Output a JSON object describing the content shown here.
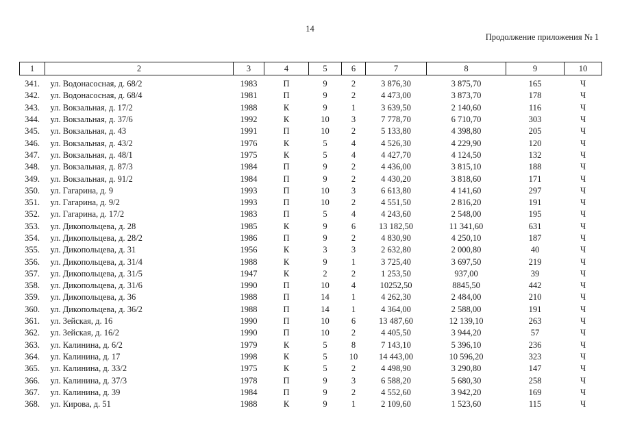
{
  "page": {
    "number": "14",
    "continuation_note": "Продолжение приложения № 1"
  },
  "table": {
    "column_headers": [
      "1",
      "2",
      "3",
      "4",
      "5",
      "6",
      "7",
      "8",
      "9",
      "10"
    ],
    "rows": [
      [
        "341.",
        "ул. Водонасосная, д. 68/2",
        "1983",
        "П",
        "9",
        "2",
        "3 876,30",
        "3 875,70",
        "165",
        "Ч"
      ],
      [
        "342.",
        "ул. Водонасосная, д. 68/4",
        "1981",
        "П",
        "9",
        "2",
        "4 473,00",
        "3 873,70",
        "178",
        "Ч"
      ],
      [
        "343.",
        "ул. Вокзальная, д. 17/2",
        "1988",
        "К",
        "9",
        "1",
        "3 639,50",
        "2 140,60",
        "116",
        "Ч"
      ],
      [
        "344.",
        "ул. Вокзальная, д. 37/6",
        "1992",
        "К",
        "10",
        "3",
        "7 778,70",
        "6 710,70",
        "303",
        "Ч"
      ],
      [
        "345.",
        "ул. Вокзальная, д. 43",
        "1991",
        "П",
        "10",
        "2",
        "5 133,80",
        "4 398,80",
        "205",
        "Ч"
      ],
      [
        "346.",
        "ул. Вокзальная, д. 43/2",
        "1976",
        "К",
        "5",
        "4",
        "4 526,30",
        "4 229,90",
        "120",
        "Ч"
      ],
      [
        "347.",
        "ул. Вокзальная, д. 48/1",
        "1975",
        "К",
        "5",
        "4",
        "4 427,70",
        "4 124,50",
        "132",
        "Ч"
      ],
      [
        "348.",
        "ул. Вокзальная, д. 87/3",
        "1984",
        "П",
        "9",
        "2",
        "4 436,00",
        "3 815,10",
        "188",
        "Ч"
      ],
      [
        "349.",
        "ул. Вокзальная, д. 91/2",
        "1984",
        "П",
        "9",
        "2",
        "4 430,20",
        "3 818,60",
        "171",
        "Ч"
      ],
      [
        "350.",
        "ул. Гагарина, д. 9",
        "1993",
        "П",
        "10",
        "3",
        "6 613,80",
        "4 141,60",
        "297",
        "Ч"
      ],
      [
        "351.",
        "ул. Гагарина, д. 9/2",
        "1993",
        "П",
        "10",
        "2",
        "4 551,50",
        "2 816,20",
        "191",
        "Ч"
      ],
      [
        "352.",
        "ул. Гагарина, д. 17/2",
        "1983",
        "П",
        "5",
        "4",
        "4 243,60",
        "2 548,00",
        "195",
        "Ч"
      ],
      [
        "353.",
        "ул. Дикопольцева, д. 28",
        "1985",
        "К",
        "9",
        "6",
        "13 182,50",
        "11 341,60",
        "631",
        "Ч"
      ],
      [
        "354.",
        "ул. Дикопольцева, д. 28/2",
        "1986",
        "П",
        "9",
        "2",
        "4 830,90",
        "4 250,10",
        "187",
        "Ч"
      ],
      [
        "355.",
        "ул. Дикопольцева, д. 31",
        "1956",
        "К",
        "3",
        "3",
        "2 632,80",
        "2 000,80",
        "40",
        "Ч"
      ],
      [
        "356.",
        "ул. Дикопольцева, д. 31/4",
        "1988",
        "К",
        "9",
        "1",
        "3 725,40",
        "3 697,50",
        "219",
        "Ч"
      ],
      [
        "357.",
        "ул. Дикопольцева, д. 31/5",
        "1947",
        "К",
        "2",
        "2",
        "1 253,50",
        "937,00",
        "39",
        "Ч"
      ],
      [
        "358.",
        "ул. Дикопольцева, д. 31/6",
        "1990",
        "П",
        "10",
        "4",
        "10252,50",
        "8845,50",
        "442",
        "Ч"
      ],
      [
        "359.",
        "ул. Дикопольцева, д. 36",
        "1988",
        "П",
        "14",
        "1",
        "4 262,30",
        "2 484,00",
        "210",
        "Ч"
      ],
      [
        "360.",
        "ул. Дикопольцева, д. 36/2",
        "1988",
        "П",
        "14",
        "1",
        "4 364,00",
        "2 588,00",
        "191",
        "Ч"
      ],
      [
        "361.",
        "ул. Зейская, д. 16",
        "1990",
        "П",
        "10",
        "6",
        "13 487,60",
        "12 139,10",
        "263",
        "Ч"
      ],
      [
        "362.",
        "ул. Зейская, д. 16/2",
        "1990",
        "П",
        "10",
        "2",
        "4 405,50",
        "3 944,20",
        "57",
        "Ч"
      ],
      [
        "363.",
        "ул. Калинина, д. 6/2",
        "1979",
        "К",
        "5",
        "8",
        "7 143,10",
        "5 396,10",
        "236",
        "Ч"
      ],
      [
        "364.",
        "ул. Калинина, д. 17",
        "1998",
        "К",
        "5",
        "10",
        "14 443,00",
        "10 596,20",
        "323",
        "Ч"
      ],
      [
        "365.",
        "ул. Калинина, д. 33/2",
        "1975",
        "К",
        "5",
        "2",
        "4 498,90",
        "3 290,80",
        "147",
        "Ч"
      ],
      [
        "366.",
        "ул. Калинина, д. 37/3",
        "1978",
        "П",
        "9",
        "3",
        "6 588,20",
        "5 680,30",
        "258",
        "Ч"
      ],
      [
        "367.",
        "ул. Калинина, д. 39",
        "1984",
        "П",
        "9",
        "2",
        "4 552,60",
        "3 942,20",
        "169",
        "Ч"
      ],
      [
        "368.",
        "ул. Кирова, д. 51",
        "1988",
        "К",
        "9",
        "1",
        "2 109,60",
        "1 523,60",
        "115",
        "Ч"
      ]
    ]
  }
}
